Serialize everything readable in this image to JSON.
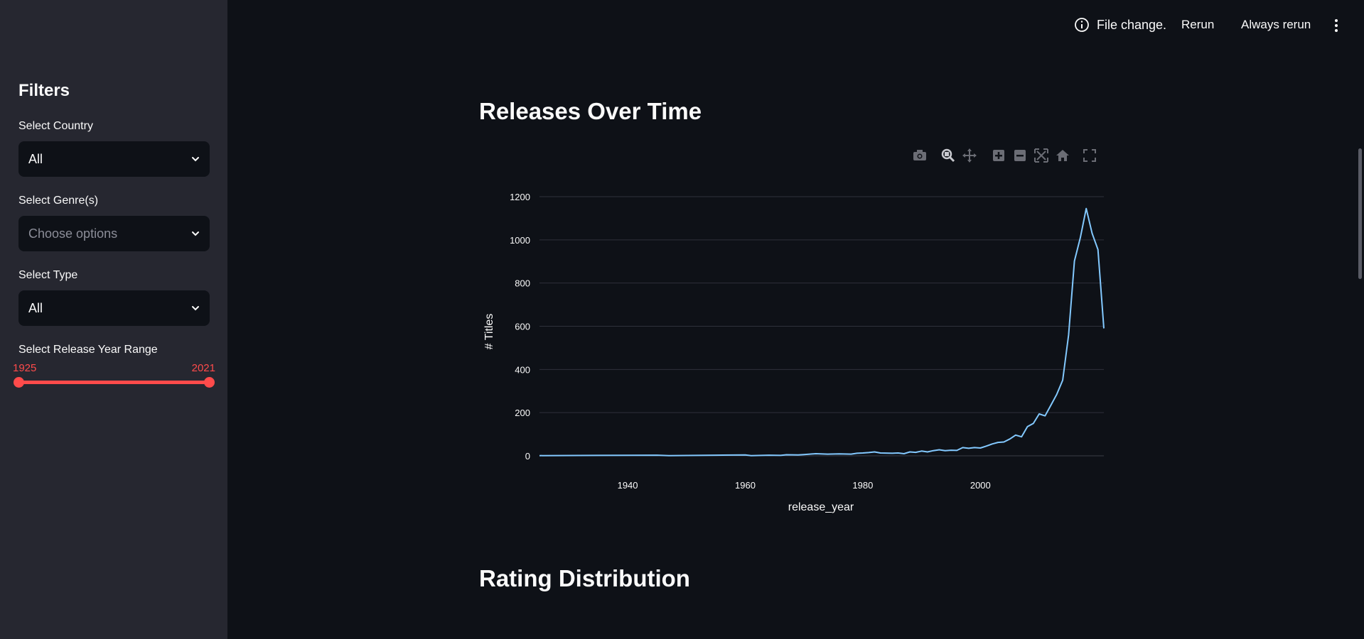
{
  "sidebar": {
    "title": "Filters",
    "country": {
      "label": "Select Country",
      "value": "All"
    },
    "genre": {
      "label": "Select Genre(s)",
      "placeholder": "Choose options"
    },
    "type": {
      "label": "Select Type",
      "value": "All"
    },
    "year_range": {
      "label": "Select Release Year Range",
      "min": "1925",
      "max": "2021"
    }
  },
  "topbar": {
    "status": "File change.",
    "rerun": "Rerun",
    "always_rerun": "Always rerun"
  },
  "main": {
    "section1_title": "Releases Over Time",
    "section2_title": "Rating Distribution"
  },
  "colors": {
    "accent": "#ff4b4b",
    "line": "#83c9ff",
    "bg": "#0e1117",
    "sidebar": "#262730"
  },
  "chart_data": {
    "type": "line",
    "title": "",
    "xlabel": "release_year",
    "ylabel": "# Titles",
    "xlim": [
      1925,
      2021
    ],
    "ylim": [
      0,
      1200
    ],
    "x_ticks": [
      "1940",
      "1960",
      "1980",
      "2000"
    ],
    "y_ticks": [
      "0",
      "200",
      "400",
      "600",
      "800",
      "1000",
      "1200"
    ],
    "grid": true,
    "series": [
      {
        "x": [
          1925,
          1935,
          1945,
          1947,
          1955,
          1960,
          1961,
          1964,
          1966,
          1967,
          1969,
          1970,
          1972,
          1974,
          1976,
          1978,
          1979,
          1980,
          1981,
          1982,
          1983,
          1985,
          1986,
          1987,
          1988,
          1989,
          1990,
          1991,
          1992,
          1993,
          1994,
          1995,
          1996,
          1997,
          1998,
          1999,
          2000,
          2001,
          2002,
          2003,
          2004,
          2005,
          2006,
          2007,
          2008,
          2009,
          2010,
          2011,
          2012,
          2013,
          2014,
          2015,
          2016,
          2017,
          2018,
          2019,
          2020,
          2021
        ],
        "y": [
          1,
          2,
          3,
          1,
          3,
          4,
          1,
          3,
          2,
          5,
          4,
          6,
          10,
          8,
          9,
          8,
          12,
          13,
          15,
          18,
          13,
          12,
          13,
          10,
          18,
          16,
          22,
          18,
          24,
          28,
          24,
          26,
          25,
          38,
          35,
          38,
          36,
          45,
          55,
          62,
          64,
          78,
          96,
          88,
          135,
          150,
          194,
          185,
          235,
          285,
          350,
          560,
          902,
          1010,
          1145,
          1030,
          955,
          590
        ]
      }
    ]
  }
}
